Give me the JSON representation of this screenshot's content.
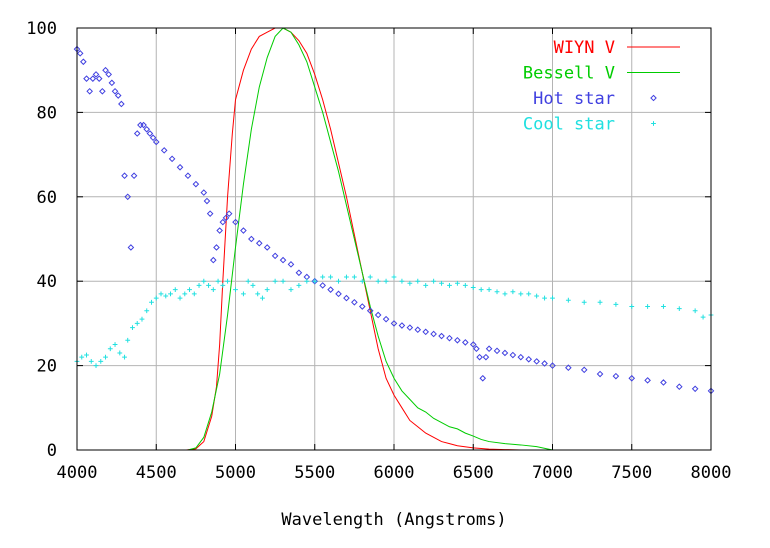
{
  "chart_data": {
    "type": "line",
    "xlabel": "Wavelength (Angstroms)",
    "ylabel": "",
    "xlim": [
      4000,
      8000
    ],
    "ylim": [
      0,
      100
    ],
    "xticks": [
      4000,
      4500,
      5000,
      5500,
      6000,
      6500,
      7000,
      7500,
      8000
    ],
    "yticks": [
      0,
      20,
      40,
      60,
      80,
      100
    ],
    "xtick_labels": [
      "4000",
      "4500",
      "5000",
      "5500",
      "6000",
      "6500",
      "7000",
      "7500",
      "8000"
    ],
    "ytick_labels": [
      "0",
      "20",
      "40",
      "60",
      "80",
      "100"
    ],
    "grid": true,
    "legend_position": "top-right",
    "series": [
      {
        "name": "WIYN V",
        "style": "line",
        "color": "#ff0000",
        "points": [
          [
            4690,
            0
          ],
          [
            4750,
            0.3
          ],
          [
            4800,
            2
          ],
          [
            4850,
            8
          ],
          [
            4880,
            15
          ],
          [
            4900,
            25
          ],
          [
            4920,
            40
          ],
          [
            4950,
            60
          ],
          [
            4980,
            75
          ],
          [
            5000,
            83
          ],
          [
            5050,
            90
          ],
          [
            5100,
            95
          ],
          [
            5150,
            98
          ],
          [
            5200,
            99
          ],
          [
            5250,
            100
          ],
          [
            5300,
            100
          ],
          [
            5350,
            99
          ],
          [
            5400,
            97
          ],
          [
            5450,
            94
          ],
          [
            5500,
            89
          ],
          [
            5550,
            83
          ],
          [
            5600,
            76
          ],
          [
            5650,
            68
          ],
          [
            5700,
            60
          ],
          [
            5750,
            51
          ],
          [
            5800,
            42
          ],
          [
            5850,
            33
          ],
          [
            5900,
            24
          ],
          [
            5950,
            17
          ],
          [
            6000,
            13
          ],
          [
            6050,
            10
          ],
          [
            6100,
            7
          ],
          [
            6150,
            5.5
          ],
          [
            6200,
            4
          ],
          [
            6250,
            3
          ],
          [
            6300,
            2
          ],
          [
            6350,
            1.5
          ],
          [
            6400,
            1
          ],
          [
            6500,
            0.5
          ],
          [
            6600,
            0.2
          ],
          [
            6700,
            0.1
          ],
          [
            6800,
            0
          ]
        ]
      },
      {
        "name": "Bessell V",
        "style": "line",
        "color": "#00cc00",
        "points": [
          [
            4700,
            0
          ],
          [
            4750,
            0.5
          ],
          [
            4800,
            3
          ],
          [
            4850,
            9
          ],
          [
            4900,
            18
          ],
          [
            4950,
            32
          ],
          [
            5000,
            48
          ],
          [
            5050,
            63
          ],
          [
            5100,
            76
          ],
          [
            5150,
            86
          ],
          [
            5200,
            93
          ],
          [
            5250,
            98
          ],
          [
            5300,
            100
          ],
          [
            5350,
            99
          ],
          [
            5400,
            96
          ],
          [
            5450,
            92
          ],
          [
            5500,
            86
          ],
          [
            5550,
            80
          ],
          [
            5600,
            73
          ],
          [
            5650,
            66
          ],
          [
            5700,
            58
          ],
          [
            5750,
            50
          ],
          [
            5800,
            42
          ],
          [
            5850,
            34
          ],
          [
            5900,
            27
          ],
          [
            5950,
            21
          ],
          [
            6000,
            17
          ],
          [
            6050,
            14
          ],
          [
            6100,
            12
          ],
          [
            6150,
            10
          ],
          [
            6200,
            9
          ],
          [
            6250,
            7.5
          ],
          [
            6300,
            6.5
          ],
          [
            6350,
            5.5
          ],
          [
            6400,
            5
          ],
          [
            6450,
            4
          ],
          [
            6500,
            3.3
          ],
          [
            6550,
            2.5
          ],
          [
            6600,
            2
          ],
          [
            6700,
            1.5
          ],
          [
            6800,
            1.2
          ],
          [
            6900,
            0.8
          ],
          [
            7000,
            0
          ]
        ]
      },
      {
        "name": "Hot star",
        "style": "points",
        "color": "#4040e0",
        "points": [
          [
            4000,
            95
          ],
          [
            4020,
            94
          ],
          [
            4040,
            92
          ],
          [
            4060,
            88
          ],
          [
            4080,
            85
          ],
          [
            4100,
            88
          ],
          [
            4120,
            89
          ],
          [
            4140,
            88
          ],
          [
            4160,
            85
          ],
          [
            4180,
            90
          ],
          [
            4200,
            89
          ],
          [
            4220,
            87
          ],
          [
            4240,
            85
          ],
          [
            4260,
            84
          ],
          [
            4280,
            82
          ],
          [
            4300,
            65
          ],
          [
            4320,
            60
          ],
          [
            4340,
            48
          ],
          [
            4360,
            65
          ],
          [
            4380,
            75
          ],
          [
            4400,
            77
          ],
          [
            4420,
            77
          ],
          [
            4440,
            76
          ],
          [
            4460,
            75
          ],
          [
            4480,
            74
          ],
          [
            4500,
            73
          ],
          [
            4550,
            71
          ],
          [
            4600,
            69
          ],
          [
            4650,
            67
          ],
          [
            4700,
            65
          ],
          [
            4750,
            63
          ],
          [
            4800,
            61
          ],
          [
            4820,
            59
          ],
          [
            4840,
            56
          ],
          [
            4860,
            45
          ],
          [
            4880,
            48
          ],
          [
            4900,
            52
          ],
          [
            4920,
            54
          ],
          [
            4940,
            55
          ],
          [
            4960,
            56
          ],
          [
            5000,
            54
          ],
          [
            5050,
            52
          ],
          [
            5100,
            50
          ],
          [
            5150,
            49
          ],
          [
            5200,
            48
          ],
          [
            5250,
            46
          ],
          [
            5300,
            45
          ],
          [
            5350,
            44
          ],
          [
            5400,
            42
          ],
          [
            5450,
            41
          ],
          [
            5500,
            40
          ],
          [
            5550,
            39
          ],
          [
            5600,
            38
          ],
          [
            5650,
            37
          ],
          [
            5700,
            36
          ],
          [
            5750,
            35
          ],
          [
            5800,
            34
          ],
          [
            5850,
            33
          ],
          [
            5900,
            32
          ],
          [
            5950,
            31
          ],
          [
            6000,
            30
          ],
          [
            6050,
            29.5
          ],
          [
            6100,
            29
          ],
          [
            6150,
            28.5
          ],
          [
            6200,
            28
          ],
          [
            6250,
            27.5
          ],
          [
            6300,
            27
          ],
          [
            6350,
            26.5
          ],
          [
            6400,
            26
          ],
          [
            6450,
            25.5
          ],
          [
            6500,
            25
          ],
          [
            6520,
            24
          ],
          [
            6540,
            22
          ],
          [
            6560,
            17
          ],
          [
            6580,
            22
          ],
          [
            6600,
            24
          ],
          [
            6650,
            23.5
          ],
          [
            6700,
            23
          ],
          [
            6750,
            22.5
          ],
          [
            6800,
            22
          ],
          [
            6850,
            21.5
          ],
          [
            6900,
            21
          ],
          [
            6950,
            20.5
          ],
          [
            7000,
            20
          ],
          [
            7100,
            19.5
          ],
          [
            7200,
            19
          ],
          [
            7300,
            18
          ],
          [
            7400,
            17.5
          ],
          [
            7500,
            17
          ],
          [
            7600,
            16.5
          ],
          [
            7700,
            16
          ],
          [
            7800,
            15
          ],
          [
            7900,
            14.5
          ],
          [
            8000,
            14
          ]
        ]
      },
      {
        "name": "Cool star",
        "style": "points",
        "color": "#20e0e0",
        "points": [
          [
            4000,
            21
          ],
          [
            4030,
            22
          ],
          [
            4060,
            22.5
          ],
          [
            4090,
            21
          ],
          [
            4120,
            20
          ],
          [
            4150,
            21
          ],
          [
            4180,
            22
          ],
          [
            4210,
            24
          ],
          [
            4240,
            25
          ],
          [
            4270,
            23
          ],
          [
            4300,
            22
          ],
          [
            4320,
            26
          ],
          [
            4350,
            29
          ],
          [
            4380,
            30
          ],
          [
            4410,
            31
          ],
          [
            4440,
            33
          ],
          [
            4470,
            35
          ],
          [
            4500,
            36
          ],
          [
            4530,
            37
          ],
          [
            4560,
            36.5
          ],
          [
            4590,
            37
          ],
          [
            4620,
            38
          ],
          [
            4650,
            36
          ],
          [
            4680,
            37
          ],
          [
            4710,
            38
          ],
          [
            4740,
            37
          ],
          [
            4770,
            39
          ],
          [
            4800,
            40
          ],
          [
            4830,
            39
          ],
          [
            4860,
            38
          ],
          [
            4890,
            40
          ],
          [
            4920,
            39
          ],
          [
            4950,
            40
          ],
          [
            5000,
            38
          ],
          [
            5050,
            37
          ],
          [
            5080,
            40
          ],
          [
            5110,
            39
          ],
          [
            5140,
            37
          ],
          [
            5170,
            36
          ],
          [
            5200,
            38
          ],
          [
            5250,
            40
          ],
          [
            5300,
            40
          ],
          [
            5350,
            38
          ],
          [
            5400,
            39
          ],
          [
            5450,
            40
          ],
          [
            5500,
            40
          ],
          [
            5550,
            41
          ],
          [
            5600,
            41
          ],
          [
            5650,
            40
          ],
          [
            5700,
            41
          ],
          [
            5750,
            41
          ],
          [
            5800,
            40
          ],
          [
            5850,
            41
          ],
          [
            5900,
            40
          ],
          [
            5950,
            40
          ],
          [
            6000,
            41
          ],
          [
            6050,
            40
          ],
          [
            6100,
            39.5
          ],
          [
            6150,
            40
          ],
          [
            6200,
            39
          ],
          [
            6250,
            40
          ],
          [
            6300,
            39.5
          ],
          [
            6350,
            39
          ],
          [
            6400,
            39.5
          ],
          [
            6450,
            39
          ],
          [
            6500,
            38.5
          ],
          [
            6550,
            38
          ],
          [
            6600,
            38
          ],
          [
            6650,
            37.5
          ],
          [
            6700,
            37
          ],
          [
            6750,
            37.5
          ],
          [
            6800,
            37
          ],
          [
            6850,
            37
          ],
          [
            6900,
            36.5
          ],
          [
            6950,
            36
          ],
          [
            7000,
            36
          ],
          [
            7100,
            35.5
          ],
          [
            7200,
            35
          ],
          [
            7300,
            35
          ],
          [
            7400,
            34.5
          ],
          [
            7500,
            34
          ],
          [
            7600,
            34
          ],
          [
            7700,
            34
          ],
          [
            7800,
            33.5
          ],
          [
            7900,
            33
          ],
          [
            7950,
            31.5
          ],
          [
            8000,
            32
          ]
        ]
      }
    ]
  }
}
